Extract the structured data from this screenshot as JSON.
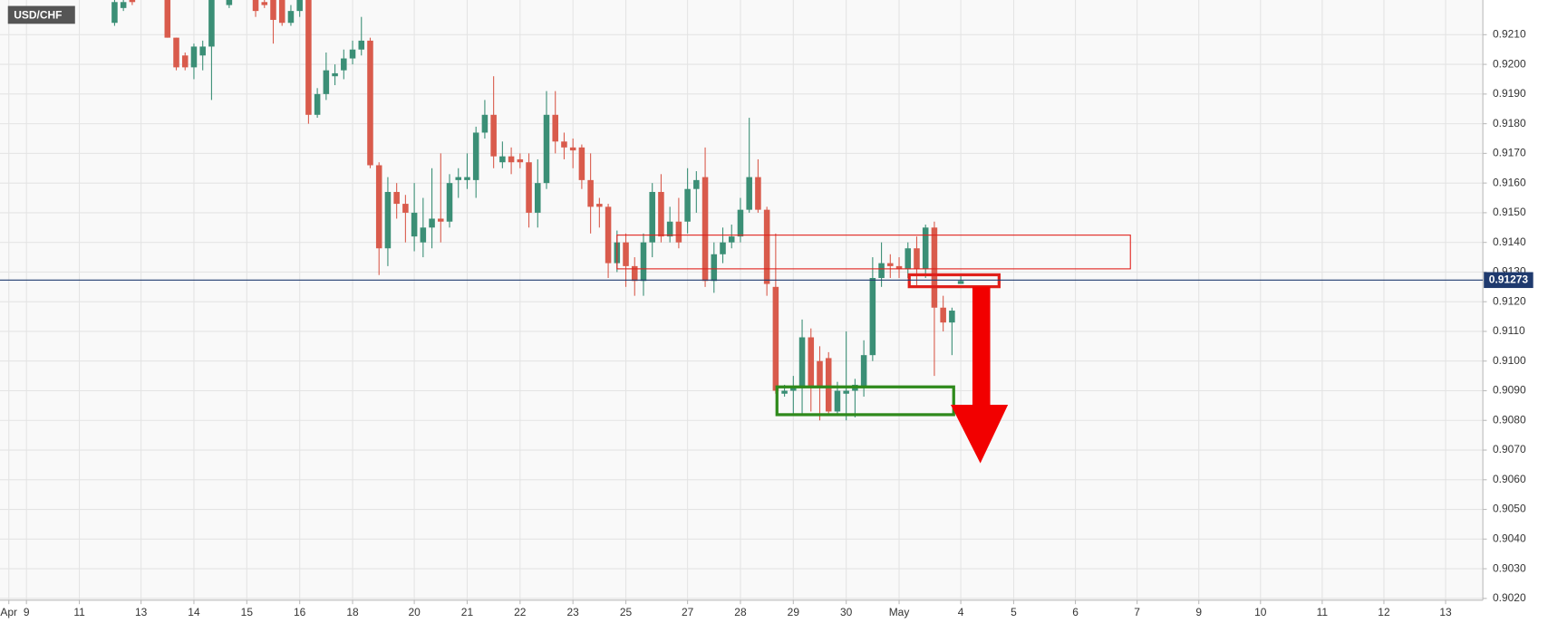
{
  "chart_data": {
    "type": "candlestick",
    "title": "USD/CHF",
    "x": [
      13,
      14,
      15,
      19,
      20,
      21,
      22,
      23,
      24,
      26,
      29,
      30,
      31,
      32,
      33,
      34,
      35,
      36,
      37,
      38,
      39,
      40,
      41,
      42,
      43,
      44,
      45,
      46,
      47,
      48,
      49,
      50,
      51,
      52,
      53,
      54,
      55,
      56,
      57,
      58,
      59,
      60,
      61,
      62,
      63,
      64,
      65,
      66,
      67,
      68,
      69,
      70,
      71,
      72,
      73,
      74,
      75,
      76,
      77,
      78,
      79,
      80,
      81,
      82,
      83,
      84,
      85,
      86,
      87,
      88,
      89,
      90,
      91,
      92,
      93,
      94,
      95,
      96,
      97,
      98,
      99,
      100,
      101,
      102,
      103,
      104,
      105,
      106,
      107,
      108,
      109
    ],
    "open": [
      0.9214,
      0.9219,
      0.9222,
      0.9222,
      0.9209,
      0.9203,
      0.9199,
      0.9203,
      0.9206,
      0.922,
      0.9222,
      0.9221,
      0.9222,
      0.9222,
      0.9214,
      0.9218,
      0.9222,
      0.9183,
      0.919,
      0.9196,
      0.9198,
      0.9202,
      0.9205,
      0.9208,
      0.9166,
      0.9138,
      0.9157,
      0.9153,
      0.9142,
      0.914,
      0.9145,
      0.9148,
      0.9147,
      0.9161,
      0.9161,
      0.9161,
      0.9177,
      0.9183,
      0.9167,
      0.9169,
      0.9168,
      0.9167,
      0.915,
      0.916,
      0.9183,
      0.9174,
      0.9172,
      0.9172,
      0.9161,
      0.9153,
      0.9152,
      0.9133,
      0.914,
      0.9132,
      0.9127,
      0.914,
      0.9157,
      0.9142,
      0.9147,
      0.9147,
      0.9158,
      0.9162,
      0.9127,
      0.9136,
      0.914,
      0.9142,
      0.9151,
      0.9162,
      0.9151,
      0.9125,
      0.9089,
      0.909,
      0.9091,
      0.9108,
      0.91,
      0.9101,
      0.9083,
      0.9089,
      0.909,
      0.9091,
      0.9102,
      0.9128,
      0.9133,
      0.9132,
      0.9131,
      0.9138,
      0.9131,
      0.9145,
      0.9118,
      0.9113,
      0.9126
    ],
    "high": [
      0.9222,
      0.9222,
      0.9222,
      0.9222,
      0.9209,
      0.9204,
      0.9207,
      0.9208,
      0.9222,
      0.9222,
      0.9222,
      0.9222,
      0.9222,
      0.9222,
      0.922,
      0.9222,
      0.9222,
      0.9192,
      0.9204,
      0.92,
      0.9205,
      0.9208,
      0.9216,
      0.9209,
      0.9167,
      0.9162,
      0.916,
      0.9156,
      0.916,
      0.9155,
      0.9165,
      0.917,
      0.9163,
      0.9165,
      0.917,
      0.9179,
      0.9188,
      0.9196,
      0.9174,
      0.9172,
      0.917,
      0.917,
      0.9168,
      0.9191,
      0.9191,
      0.9177,
      0.9175,
      0.9173,
      0.917,
      0.9155,
      0.9153,
      0.9144,
      0.9143,
      0.9135,
      0.9143,
      0.916,
      0.9163,
      0.9152,
      0.9155,
      0.9165,
      0.9164,
      0.9172,
      0.914,
      0.9145,
      0.9146,
      0.9155,
      0.9182,
      0.9168,
      0.9152,
      0.9143,
      0.9092,
      0.9095,
      0.9114,
      0.9111,
      0.9105,
      0.9103,
      0.9093,
      0.911,
      0.9094,
      0.9107,
      0.9135,
      0.914,
      0.9136,
      0.9135,
      0.914,
      0.9142,
      0.9146,
      0.9147,
      0.9122,
      0.9118,
      0.9129
    ],
    "low": [
      0.9213,
      0.9218,
      0.922,
      0.9209,
      0.9198,
      0.9198,
      0.9195,
      0.9198,
      0.9188,
      0.9219,
      0.9216,
      0.9219,
      0.9207,
      0.9213,
      0.9213,
      0.9216,
      0.918,
      0.9182,
      0.9188,
      0.9193,
      0.9195,
      0.92,
      0.9203,
      0.9165,
      0.9129,
      0.9132,
      0.9148,
      0.914,
      0.9137,
      0.9135,
      0.9138,
      0.914,
      0.9145,
      0.9155,
      0.9158,
      0.9155,
      0.9175,
      0.9165,
      0.9165,
      0.9163,
      0.9165,
      0.9145,
      0.9145,
      0.9158,
      0.917,
      0.9168,
      0.9165,
      0.9158,
      0.9143,
      0.9145,
      0.9128,
      0.913,
      0.9125,
      0.9122,
      0.9122,
      0.9135,
      0.914,
      0.914,
      0.9138,
      0.9143,
      0.915,
      0.9125,
      0.9123,
      0.9133,
      0.9138,
      0.914,
      0.915,
      0.915,
      0.9122,
      0.9089,
      0.9088,
      0.9082,
      0.9082,
      0.9083,
      0.908,
      0.9082,
      0.9082,
      0.908,
      0.9081,
      0.9088,
      0.91,
      0.9125,
      0.9128,
      0.9128,
      0.9128,
      0.9125,
      0.9128,
      0.9095,
      0.911,
      0.9102,
      0.9126
    ],
    "close": [
      0.9221,
      0.9221,
      0.9221,
      0.9209,
      0.9199,
      0.9199,
      0.9206,
      0.9206,
      0.9222,
      0.9222,
      0.9218,
      0.922,
      0.9215,
      0.9214,
      0.9218,
      0.9222,
      0.9183,
      0.919,
      0.9198,
      0.9197,
      0.9202,
      0.9205,
      0.9208,
      0.9166,
      0.9138,
      0.9157,
      0.9153,
      0.915,
      0.915,
      0.9145,
      0.9148,
      0.9147,
      0.916,
      0.9162,
      0.9162,
      0.9177,
      0.9183,
      0.9169,
      0.9169,
      0.9167,
      0.9167,
      0.915,
      0.916,
      0.9183,
      0.9174,
      0.9172,
      0.9171,
      0.9161,
      0.9152,
      0.9152,
      0.9133,
      0.914,
      0.9132,
      0.9127,
      0.914,
      0.9157,
      0.9142,
      0.9147,
      0.914,
      0.9158,
      0.9161,
      0.9127,
      0.9136,
      0.914,
      0.9142,
      0.9151,
      0.9162,
      0.9151,
      0.9126,
      0.909,
      0.909,
      0.9091,
      0.9108,
      0.9091,
      0.9091,
      0.9083,
      0.909,
      0.909,
      0.9092,
      0.9102,
      0.9128,
      0.9133,
      0.9132,
      0.9131,
      0.9138,
      0.9131,
      0.9145,
      0.9118,
      0.9113,
      0.9117,
      0.9127
    ],
    "up_color": "#3b8f76",
    "down_color": "#d95b4c",
    "xlim": [
      0,
      168
    ],
    "ylim": [
      0.90194,
      0.92217
    ],
    "xticks": [
      {
        "value": 1,
        "label": "Apr"
      },
      {
        "value": 3,
        "label": "9"
      },
      {
        "value": 9,
        "label": "11"
      },
      {
        "value": 16,
        "label": "13"
      },
      {
        "value": 22,
        "label": "14"
      },
      {
        "value": 28,
        "label": "15"
      },
      {
        "value": 34,
        "label": "16"
      },
      {
        "value": 40,
        "label": "18"
      },
      {
        "value": 47,
        "label": "20"
      },
      {
        "value": 53,
        "label": "21"
      },
      {
        "value": 59,
        "label": "22"
      },
      {
        "value": 65,
        "label": "23"
      },
      {
        "value": 71,
        "label": "25"
      },
      {
        "value": 78,
        "label": "27"
      },
      {
        "value": 84,
        "label": "28"
      },
      {
        "value": 90,
        "label": "29"
      },
      {
        "value": 96,
        "label": "30"
      },
      {
        "value": 102,
        "label": "May"
      },
      {
        "value": 109,
        "label": "4"
      },
      {
        "value": 115,
        "label": "5"
      },
      {
        "value": 122,
        "label": "6"
      },
      {
        "value": 129,
        "label": "7"
      },
      {
        "value": 136,
        "label": "9"
      },
      {
        "value": 143,
        "label": "10"
      },
      {
        "value": 150,
        "label": "11"
      },
      {
        "value": 157,
        "label": "12"
      },
      {
        "value": 164,
        "label": "13"
      }
    ],
    "yticks": [
      {
        "value": 0.902,
        "label": "0.9020"
      },
      {
        "value": 0.903,
        "label": "0.9030"
      },
      {
        "value": 0.904,
        "label": "0.9040"
      },
      {
        "value": 0.905,
        "label": "0.9050"
      },
      {
        "value": 0.906,
        "label": "0.9060"
      },
      {
        "value": 0.907,
        "label": "0.9070"
      },
      {
        "value": 0.908,
        "label": "0.9080"
      },
      {
        "value": 0.909,
        "label": "0.9090"
      },
      {
        "value": 0.91,
        "label": "0.9100"
      },
      {
        "value": 0.911,
        "label": "0.9110"
      },
      {
        "value": 0.912,
        "label": "0.9120"
      },
      {
        "value": 0.913,
        "label": "0.9130"
      },
      {
        "value": 0.914,
        "label": "0.9140"
      },
      {
        "value": 0.915,
        "label": "0.9150"
      },
      {
        "value": 0.916,
        "label": "0.9160"
      },
      {
        "value": 0.917,
        "label": "0.9170"
      },
      {
        "value": 0.918,
        "label": "0.9180"
      },
      {
        "value": 0.919,
        "label": "0.9190"
      },
      {
        "value": 0.92,
        "label": "0.9200"
      },
      {
        "value": 0.921,
        "label": "0.9210"
      }
    ],
    "grid": true,
    "last_price": 0.91273,
    "last_price_color": "#1f3a6e"
  }
}
